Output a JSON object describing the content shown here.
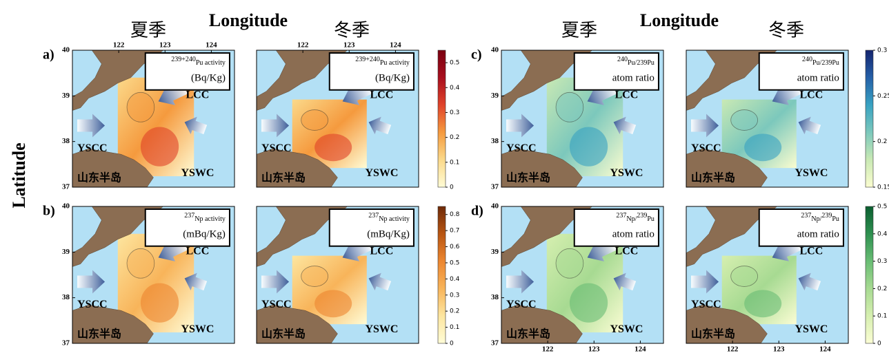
{
  "headers": {
    "left": {
      "summer": "夏季",
      "longitude": "Longitude",
      "winter": "冬季"
    },
    "right": {
      "summer": "夏季",
      "longitude": "Longitude",
      "winter": "冬季"
    }
  },
  "y_axis_title": "Latitude",
  "lat_lim": [
    37,
    40
  ],
  "lat_ticks": [
    37,
    38,
    39,
    40
  ],
  "lon_lim": [
    121,
    124.5
  ],
  "lon_ticks": [
    122,
    123,
    124
  ],
  "currents": {
    "lcc": "LCC",
    "yscc": "YSCC",
    "yswc": "YSWC",
    "peninsula": "山东半岛"
  },
  "rows": [
    {
      "label": "a)",
      "lon_axis": "top",
      "legend": {
        "sup": "239+240",
        "main": "Pu activity",
        "line2": "(Bq/Kg)"
      },
      "colorbar": {
        "lim": [
          0,
          0.55
        ],
        "ticks": [
          0,
          0.1,
          0.2,
          0.3,
          0.4,
          0.5
        ],
        "colors": [
          "#fffcd6",
          "#fbd98a",
          "#f59a3e",
          "#e0432a",
          "#a80f1e",
          "#7a0010"
        ]
      }
    },
    {
      "label": "b)",
      "lon_axis": "none",
      "legend": {
        "sup": "237",
        "main": "Np activity",
        "line2": "(mBq/Kg)"
      },
      "colorbar": {
        "lim": [
          0,
          0.85
        ],
        "ticks": [
          0,
          0.1,
          0.2,
          0.3,
          0.4,
          0.5,
          0.6,
          0.7,
          0.8
        ],
        "colors": [
          "#fffcd6",
          "#fde6a0",
          "#f8b45a",
          "#ec8630",
          "#b85512",
          "#6e2a08"
        ]
      }
    },
    {
      "label": "c)",
      "lon_axis": "none",
      "legend": {
        "sup": "240",
        "main": "Pu/239Pu",
        "line2": "atom ratio"
      },
      "colorbar": {
        "lim": [
          0.15,
          0.3
        ],
        "ticks": [
          0.15,
          0.2,
          0.25,
          0.3
        ],
        "colors": [
          "#fbfdd0",
          "#c9e9b4",
          "#7cc8bc",
          "#38a2c2",
          "#2560a8",
          "#14246e"
        ]
      }
    },
    {
      "label": "d)",
      "lon_axis": "bottom",
      "legend": {
        "sup": "237",
        "main": "Np/",
        "sup2": "239",
        "main2": "Pu",
        "line2": "atom ratio"
      },
      "colorbar": {
        "lim": [
          0,
          0.5
        ],
        "ticks": [
          0,
          0.1,
          0.2,
          0.3,
          0.4,
          0.5
        ],
        "colors": [
          "#fbfdd4",
          "#d6efb0",
          "#a7da92",
          "#69bd74",
          "#2e9050",
          "#0b5e30"
        ]
      }
    }
  ]
}
